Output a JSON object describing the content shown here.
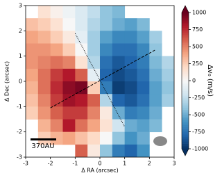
{
  "chart_data": {
    "type": "heatmap",
    "x_label": "Δ RA (arcsec)",
    "y_label": "Δ Dec (arcsec)",
    "xlim": [
      -3,
      3
    ],
    "ylim": [
      -3,
      3
    ],
    "xticks": [
      -3,
      -2,
      -1,
      0,
      1,
      2,
      3
    ],
    "yticks": [
      -3,
      -2,
      -1,
      0,
      1,
      2,
      3
    ],
    "x": [
      -2.75,
      -2.25,
      -1.75,
      -1.25,
      -0.75,
      -0.25,
      0.25,
      0.75,
      1.25,
      1.75,
      2.25,
      2.75
    ],
    "y": [
      2.75,
      2.25,
      1.75,
      1.25,
      0.75,
      0.25,
      -0.25,
      -0.75,
      -1.25,
      -1.75,
      -2.25,
      -2.75
    ],
    "values": [
      [
        null,
        150,
        50,
        -50,
        -150,
        -250,
        -400,
        -450,
        null,
        null,
        null,
        null
      ],
      [
        300,
        250,
        150,
        0,
        -150,
        -300,
        -400,
        -500,
        -550,
        -450,
        null,
        null
      ],
      [
        400,
        350,
        250,
        100,
        -100,
        -350,
        -550,
        -650,
        -650,
        -550,
        -350,
        null
      ],
      [
        450,
        450,
        400,
        250,
        0,
        -350,
        -650,
        -750,
        -750,
        -650,
        -400,
        null
      ],
      [
        450,
        500,
        550,
        500,
        150,
        -300,
        -750,
        -850,
        -800,
        -700,
        -450,
        -300
      ],
      [
        400,
        550,
        700,
        800,
        600,
        -100,
        -800,
        -900,
        -850,
        -750,
        -500,
        -350
      ],
      [
        350,
        550,
        750,
        900,
        950,
        250,
        -700,
        -950,
        -900,
        -800,
        -550,
        -400
      ],
      [
        300,
        500,
        700,
        850,
        800,
        600,
        -300,
        -800,
        -850,
        -750,
        -550,
        -350
      ],
      [
        250,
        450,
        600,
        700,
        700,
        500,
        100,
        -500,
        -700,
        -650,
        -500,
        null
      ],
      [
        null,
        350,
        500,
        800,
        550,
        400,
        150,
        -200,
        -500,
        -550,
        -450,
        null
      ],
      [
        null,
        250,
        350,
        400,
        300,
        200,
        0,
        -400,
        -600,
        -500,
        null,
        null
      ],
      [
        null,
        null,
        null,
        null,
        600,
        100,
        -400,
        -700,
        -800,
        -600,
        null,
        null
      ]
    ],
    "colormap": [
      "#053061",
      "#2166ac",
      "#4393c3",
      "#92c5de",
      "#d1e5f0",
      "#f7f7f7",
      "#fddbc7",
      "#f4a582",
      "#d6604d",
      "#b2182b",
      "#67001f"
    ],
    "clim": [
      -1000,
      1000
    ],
    "colorbar_ticks": [
      1000,
      750,
      500,
      250,
      0,
      -250,
      -500,
      -750,
      -1000
    ],
    "colorbar_label": "Δv₀ (m/s)",
    "lines": [
      {
        "style": "dashed",
        "x": [
          -2,
          2.25
        ],
        "y": [
          -1.05,
          1.25
        ]
      },
      {
        "style": "dotted",
        "x": [
          -1,
          1
        ],
        "y": [
          1.9,
          -1.8
        ]
      }
    ],
    "scalebar_label": "370AU"
  }
}
